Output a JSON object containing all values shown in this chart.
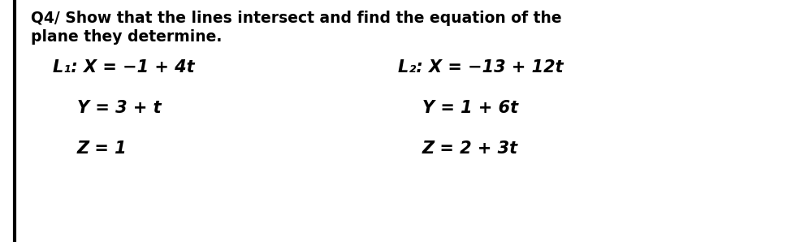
{
  "background_color": "#ffffff",
  "left_border_color": "#000000",
  "title_line1": "Q4/ Show that the lines intersect and find the equation of the",
  "title_line2": "plane they determine.",
  "title_fontsize": 13.5,
  "eq_fontsize": 15,
  "text_color": "#000000",
  "L1_row1": "L₁: X = −1 + 4t",
  "L2_row1": "L₂: X = −13 + 12t",
  "L1_row2": "Y = 3 + t",
  "L2_row2": "Y = 1 + 6t",
  "L1_row3": "Z = 1",
  "L2_row3": "Z = 2 + 3t"
}
